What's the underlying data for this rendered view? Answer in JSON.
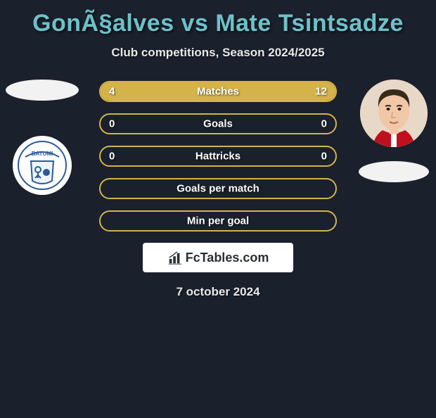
{
  "colors": {
    "background": "#1a202c",
    "title": "#6ec1c8",
    "text": "#e8e8e8",
    "bar_border": "#d4b34a",
    "bar_fill": "#d4b34a",
    "brand_bg": "#ffffff",
    "brand_text": "#2a2f33"
  },
  "title": "GonÃ§alves vs Mate Tsintsadze",
  "subtitle": "Club competitions, Season 2024/2025",
  "date": "7 october 2024",
  "brand": {
    "text": "FcTables.com"
  },
  "players": {
    "left": {
      "name": "GonÃ§alves"
    },
    "right": {
      "name": "Mate Tsintsadze"
    }
  },
  "bars": [
    {
      "label": "Matches",
      "left": "4",
      "right": "12",
      "left_pct": 25,
      "right_pct": 75
    },
    {
      "label": "Goals",
      "left": "0",
      "right": "0",
      "left_pct": 0,
      "right_pct": 0
    },
    {
      "label": "Hattricks",
      "left": "0",
      "right": "0",
      "left_pct": 0,
      "right_pct": 0
    },
    {
      "label": "Goals per match",
      "left": "",
      "right": "",
      "left_pct": 0,
      "right_pct": 0
    },
    {
      "label": "Min per goal",
      "left": "",
      "right": "",
      "left_pct": 0,
      "right_pct": 0
    }
  ]
}
